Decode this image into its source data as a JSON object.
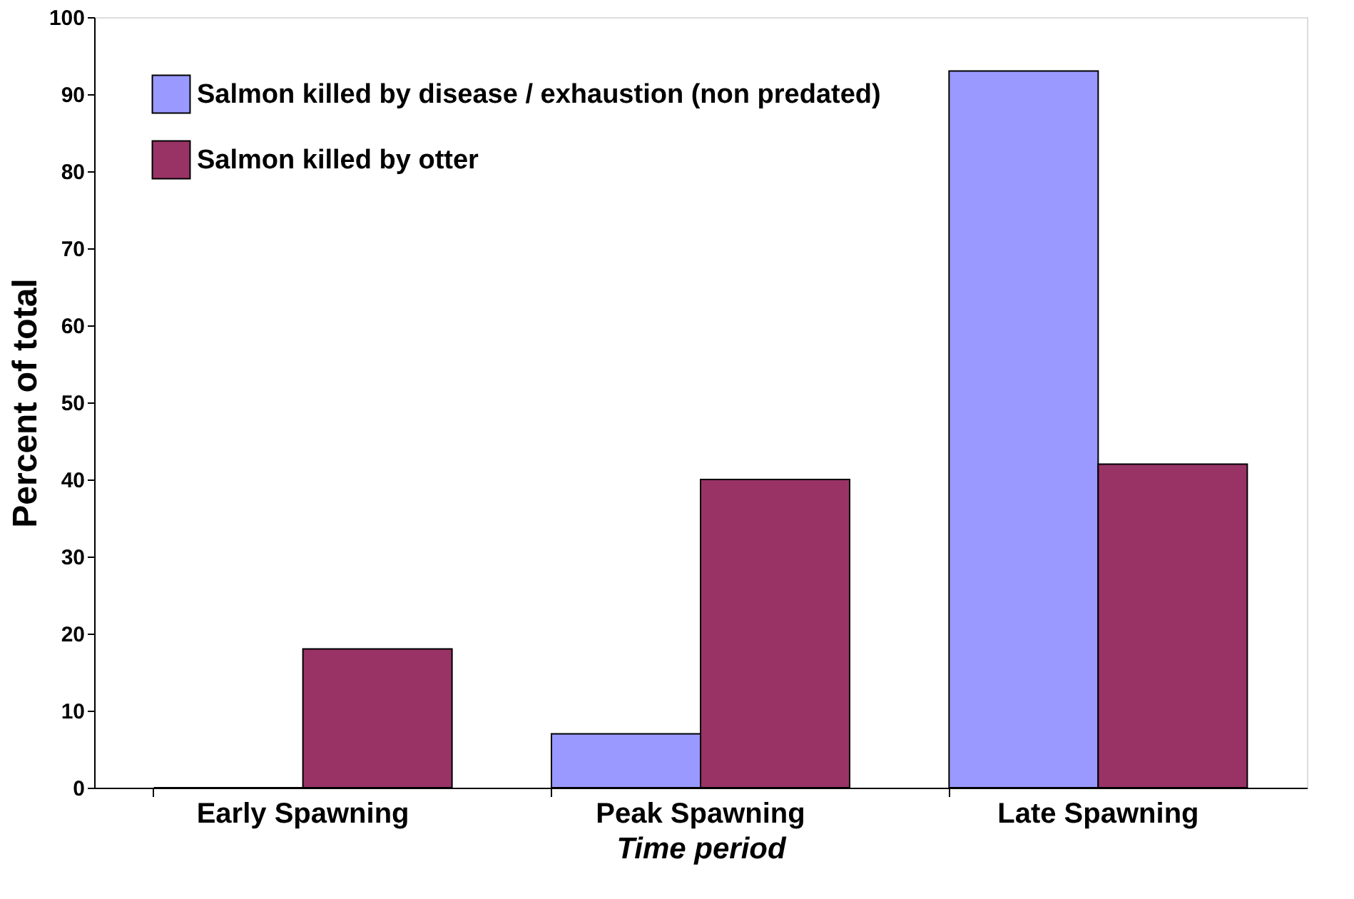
{
  "chart_data": {
    "type": "bar",
    "xlabel": "Time period",
    "ylabel": "Percent of total",
    "categories": [
      "Early Spawning",
      "Peak Spawning",
      "Late Spawning"
    ],
    "series": [
      {
        "name": "Salmon killed by disease / exhaustion (non predated)",
        "color": "#9999ff",
        "values": [
          0,
          7,
          93
        ]
      },
      {
        "name": "Salmon killed by otter",
        "color": "#993366",
        "values": [
          18,
          40,
          42
        ]
      }
    ],
    "ylim": [
      0,
      100
    ],
    "yticks": [
      0,
      10,
      20,
      30,
      40,
      50,
      60,
      70,
      80,
      90,
      100
    ],
    "grid": false,
    "legend": "top left"
  }
}
